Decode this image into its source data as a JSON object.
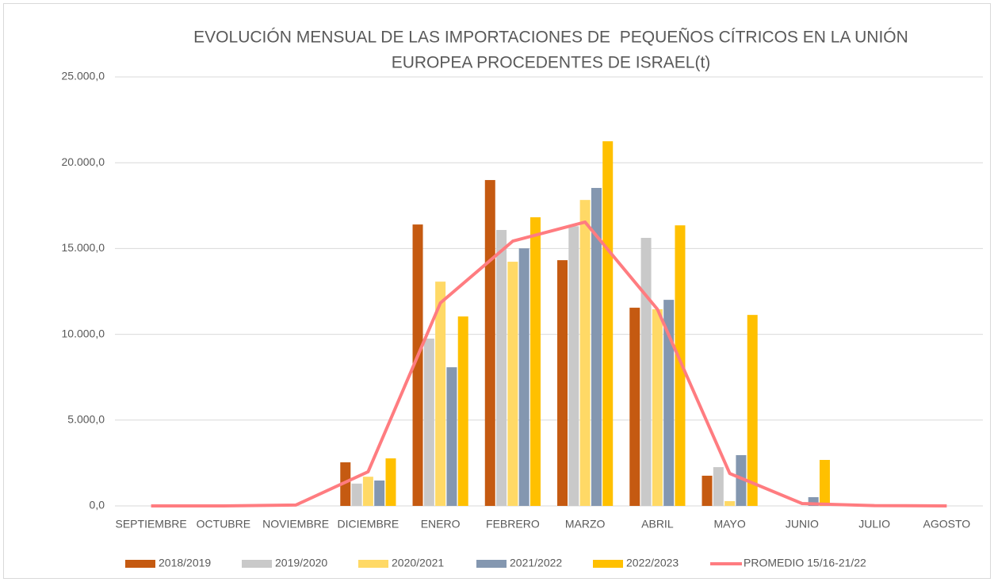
{
  "chart_data": {
    "type": "bar",
    "title": [
      "EVOLUCIÓN MENSUAL DE LAS IMPORTACIONES DE  PEQUEÑOS CÍTRICOS EN LA UNIÓN",
      "EUROPEA PROCEDENTES DE ISRAEL(t)"
    ],
    "categories": [
      "SEPTIEMBRE",
      "OCTUBRE",
      "NOVIEMBRE",
      "DICIEMBRE",
      "ENERO",
      "FEBRERO",
      "MARZO",
      "ABRIL",
      "MAYO",
      "JUNIO",
      "JULIO",
      "AGOSTO"
    ],
    "series": [
      {
        "name": "2018/2019",
        "color": "#c55a11",
        "values": [
          0,
          0,
          0,
          2540,
          16400,
          18990,
          14320,
          11550,
          1760,
          0,
          0,
          0
        ]
      },
      {
        "name": "2019/2020",
        "color": "#c9c9c9",
        "values": [
          0,
          0,
          50,
          1300,
          9750,
          16080,
          16300,
          15620,
          2260,
          0,
          0,
          0
        ]
      },
      {
        "name": "2020/2021",
        "color": "#ffd966",
        "values": [
          0,
          0,
          0,
          1700,
          13070,
          14230,
          17830,
          11460,
          280,
          0,
          0,
          0
        ]
      },
      {
        "name": "2021/2022",
        "color": "#8497b0",
        "values": [
          0,
          0,
          0,
          1480,
          8080,
          15010,
          18530,
          12010,
          2960,
          510,
          0,
          0
        ]
      },
      {
        "name": "2022/2023",
        "color": "#ffc000",
        "values": [
          0,
          0,
          0,
          2770,
          11040,
          16820,
          21250,
          16350,
          11130,
          2680,
          0,
          0
        ]
      },
      {
        "name": "PROMEDIO 15/16-21/22",
        "color": "#ff7c80",
        "type": "line",
        "values": [
          0,
          0,
          50,
          1990,
          11830,
          15430,
          16540,
          11460,
          1890,
          140,
          20,
          0
        ]
      }
    ],
    "ylim": [
      0,
      25000
    ],
    "yticks": [
      {
        "value": 0,
        "label": "0,0"
      },
      {
        "value": 5000,
        "label": "5.000,0"
      },
      {
        "value": 10000,
        "label": "10.000,0"
      },
      {
        "value": 15000,
        "label": "15.000,0"
      },
      {
        "value": 20000,
        "label": "20.000,0"
      },
      {
        "value": 25000,
        "label": "25.000,0"
      }
    ],
    "grid": true,
    "legend": "bottom"
  }
}
